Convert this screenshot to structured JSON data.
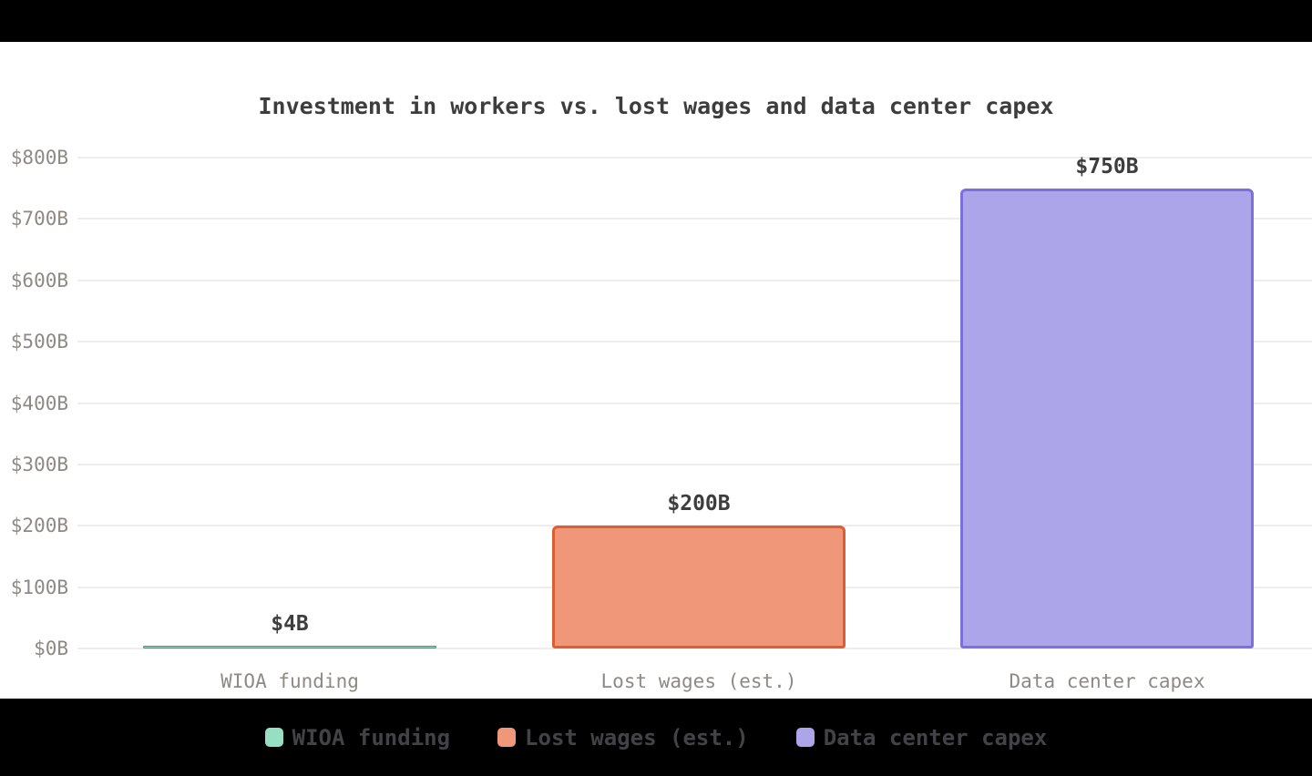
{
  "chart_data": {
    "type": "bar",
    "title": "Investment in workers vs. lost wages and data center capex",
    "categories": [
      "WIOA funding",
      "Lost wages (est.)",
      "Data center capex"
    ],
    "values": [
      4,
      200,
      750
    ],
    "value_labels": [
      "$4B",
      "$200B",
      "$750B"
    ],
    "xlabel": "",
    "ylabel": "",
    "ylim": [
      0,
      800
    ],
    "grid": true,
    "legend_position": "bottom",
    "yticks": [
      {
        "value": 0,
        "label": "$0B"
      },
      {
        "value": 100,
        "label": "$100B"
      },
      {
        "value": 200,
        "label": "$200B"
      },
      {
        "value": 300,
        "label": "$300B"
      },
      {
        "value": 400,
        "label": "$400B"
      },
      {
        "value": 500,
        "label": "$500B"
      },
      {
        "value": 600,
        "label": "$600B"
      },
      {
        "value": 700,
        "label": "$700B"
      },
      {
        "value": 800,
        "label": "$800B"
      }
    ],
    "series": [
      {
        "name": "WIOA funding",
        "value": 4,
        "value_label": "$4B",
        "fill": "#96dfc3",
        "border": "#23a37d"
      },
      {
        "name": "Lost wages (est.)",
        "value": 200,
        "value_label": "$200B",
        "fill": "#f0977a",
        "border": "#dc5e33"
      },
      {
        "name": "Data center capex",
        "value": 750,
        "value_label": "$750B",
        "fill": "#aca5ea",
        "border": "#7b70dc"
      }
    ],
    "legend": [
      "WIOA funding",
      "Lost wages (est.)",
      "Data center capex"
    ]
  },
  "colors": {
    "letterbox": "#000000",
    "canvas_background": "#ffffff",
    "gridline": "#ededed",
    "axis_text": "#8d8a85",
    "title_text": "#3d3d3d",
    "value_text": "#3d3d3d",
    "legend_text": "#434347"
  }
}
